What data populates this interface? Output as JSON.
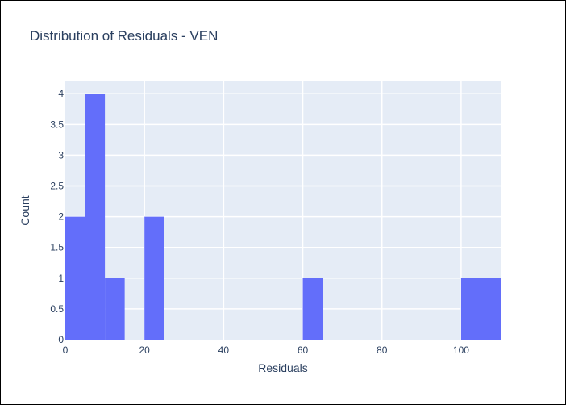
{
  "chart_data": {
    "type": "bar",
    "title": "Distribution of Residuals - VEN",
    "xlabel": "Residuals",
    "ylabel": "Count",
    "bins": [
      {
        "x0": 0,
        "x1": 5,
        "count": 2
      },
      {
        "x0": 5,
        "x1": 10,
        "count": 4
      },
      {
        "x0": 10,
        "x1": 15,
        "count": 1
      },
      {
        "x0": 15,
        "x1": 20,
        "count": 0
      },
      {
        "x0": 20,
        "x1": 25,
        "count": 2
      },
      {
        "x0": 60,
        "x1": 65,
        "count": 1
      },
      {
        "x0": 100,
        "x1": 105,
        "count": 1
      },
      {
        "x0": 105,
        "x1": 110,
        "count": 1
      }
    ],
    "xlim": [
      0,
      110
    ],
    "ylim": [
      0,
      4.2
    ],
    "xticks": [
      0,
      20,
      40,
      60,
      80,
      100
    ],
    "yticks": [
      0,
      0.5,
      1,
      1.5,
      2,
      2.5,
      3,
      3.5,
      4
    ],
    "grid": true,
    "bar_color": "#636efa",
    "plot_bg": "#e5ecf6"
  }
}
